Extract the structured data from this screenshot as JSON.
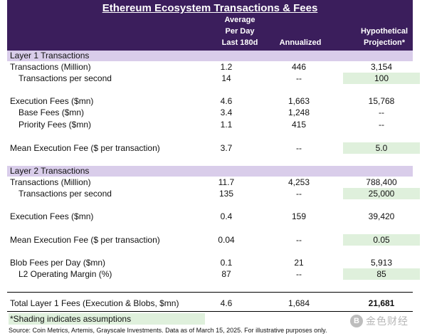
{
  "title": "Ethereum Ecosystem Transactions & Fees",
  "columns": {
    "avg": [
      "Average",
      "Per Day",
      "Last 180d"
    ],
    "annualized": "Annualized",
    "hyp": [
      "Hypothetical",
      "Projection*"
    ]
  },
  "sections": {
    "l1": "Layer 1 Transactions",
    "l2": "Layer 2 Transactions"
  },
  "rows": [
    {
      "label": "Transactions (Million)",
      "avg": "1.2",
      "ann": "446",
      "hyp": "3,154"
    },
    {
      "label": "Transactions per second",
      "avg": "14",
      "ann": "--",
      "hyp": "100"
    },
    {
      "label": "Execution Fees ($mn)",
      "avg": "4.6",
      "ann": "1,663",
      "hyp": "15,768"
    },
    {
      "label": "Base Fees ($mn)",
      "avg": "3.4",
      "ann": "1,248",
      "hyp": "--"
    },
    {
      "label": "Priority Fees ($mn)",
      "avg": "1.1",
      "ann": "415",
      "hyp": "--"
    },
    {
      "label": "Mean Execution Fee ($ per transaction)",
      "avg": "3.7",
      "ann": "--",
      "hyp": "5.0"
    },
    {
      "label": "Transactions (Million)",
      "avg": "11.7",
      "ann": "4,253",
      "hyp": "788,400"
    },
    {
      "label": "Transactions per second",
      "avg": "135",
      "ann": "--",
      "hyp": "25,000"
    },
    {
      "label": "Execution Fees ($mn)",
      "avg": "0.4",
      "ann": "159",
      "hyp": "39,420"
    },
    {
      "label": "Mean Execution Fee ($ per transaction)",
      "avg": "0.04",
      "ann": "--",
      "hyp": "0.05"
    },
    {
      "label": "Blob Fees per Day ($mn)",
      "avg": "0.1",
      "ann": "21",
      "hyp": "5,913"
    },
    {
      "label": "L2 Operating Margin (%)",
      "avg": "87",
      "ann": "--",
      "hyp": "85"
    },
    {
      "label": "Total Layer 1 Fees (Execution & Blobs, $mn)",
      "avg": "4.6",
      "ann": "1,684",
      "hyp": "21,681"
    }
  ],
  "note": "*Shading indicates assumptions",
  "source": "Source: Coin Metrics, Artemis, Grayscale Investments. Data as of March 15, 2025. For illustrative purposes only.",
  "watermark": {
    "logo": "B",
    "text": "金色财经"
  },
  "colors": {
    "header_bg": "#3b1e5c",
    "section_bg": "#d9cdea",
    "assumption_shade": "#dff0dc"
  }
}
